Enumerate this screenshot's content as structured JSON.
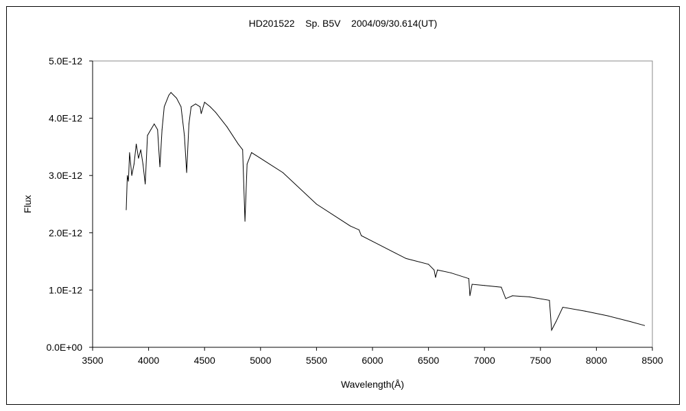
{
  "chart_data": {
    "type": "line",
    "title": "HD201522    Sp. B5V    2004/09/30.614(UT)",
    "xlabel": "Wavelength(Å)",
    "ylabel": "Flux",
    "xlim": [
      3500,
      8500
    ],
    "ylim": [
      0,
      5e-12
    ],
    "xticks": [
      "3500",
      "4000",
      "4500",
      "5000",
      "5500",
      "6000",
      "6500",
      "7000",
      "7500",
      "8000",
      "8500"
    ],
    "yticks": [
      "0.0E+00",
      "1.0E-12",
      "2.0E-12",
      "3.0E-12",
      "4.0E-12",
      "5.0E-12"
    ],
    "grid": false,
    "y_unit_scale": 1e-12,
    "series": [
      {
        "name": "HD201522",
        "x": [
          3800,
          3810,
          3820,
          3830,
          3850,
          3870,
          3890,
          3910,
          3930,
          3950,
          3970,
          3990,
          4020,
          4050,
          4080,
          4101,
          4120,
          4140,
          4180,
          4200,
          4250,
          4290,
          4320,
          4340,
          4360,
          4380,
          4420,
          4460,
          4470,
          4500,
          4550,
          4600,
          4700,
          4800,
          4840,
          4861,
          4880,
          4920,
          5000,
          5200,
          5500,
          5800,
          5880,
          5900,
          6000,
          6200,
          6300,
          6500,
          6550,
          6563,
          6580,
          6700,
          6860,
          6870,
          6890,
          7000,
          7150,
          7190,
          7250,
          7400,
          7580,
          7600,
          7640,
          7700,
          7900,
          8100,
          8300,
          8430
        ],
        "y": [
          2.4,
          3.0,
          2.9,
          3.4,
          3.0,
          3.2,
          3.55,
          3.3,
          3.45,
          3.2,
          2.85,
          3.7,
          3.8,
          3.9,
          3.8,
          3.15,
          3.8,
          4.2,
          4.4,
          4.45,
          4.35,
          4.2,
          3.7,
          3.05,
          3.9,
          4.2,
          4.25,
          4.2,
          4.08,
          4.28,
          4.2,
          4.1,
          3.85,
          3.55,
          3.45,
          2.2,
          3.2,
          3.4,
          3.3,
          3.05,
          2.5,
          2.12,
          2.05,
          1.95,
          1.85,
          1.65,
          1.55,
          1.45,
          1.35,
          1.22,
          1.35,
          1.3,
          1.2,
          0.9,
          1.1,
          1.08,
          1.05,
          0.85,
          0.9,
          0.88,
          0.82,
          0.3,
          0.45,
          0.7,
          0.63,
          0.55,
          0.45,
          0.38
        ]
      }
    ]
  }
}
